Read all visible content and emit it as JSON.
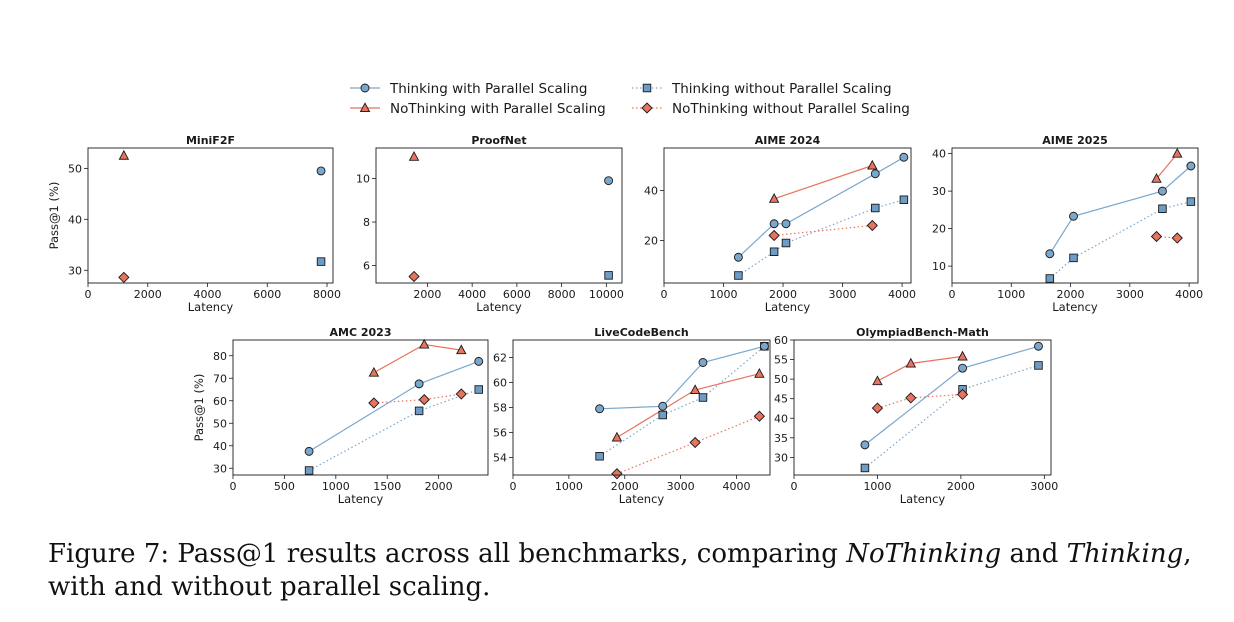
{
  "legend": {
    "entries": [
      {
        "key": "tp",
        "label": "Thinking with Parallel Scaling"
      },
      {
        "key": "tn",
        "label": "Thinking without Parallel Scaling"
      },
      {
        "key": "np",
        "label": "NoThinking with Parallel Scaling"
      },
      {
        "key": "nn",
        "label": "NoThinking without Parallel Scaling"
      }
    ]
  },
  "styles": {
    "tp": {
      "color": "#7ba7cd",
      "marker_fill": "#7ba7cd",
      "marker": "circle",
      "dash": "solid"
    },
    "tn": {
      "color": "#7ba7cd",
      "marker_fill": "#6d9cc6",
      "marker": "square",
      "dash": "dotted"
    },
    "np": {
      "color": "#e8735f",
      "marker_fill": "#e8735f",
      "marker": "triangle",
      "dash": "solid"
    },
    "nn": {
      "color": "#e8735f",
      "marker_fill": "#e8735f",
      "marker": "diamond",
      "dash": "dotted"
    }
  },
  "caption": {
    "prefix": "Figure 7: Pass@1 results across all benchmarks, comparing ",
    "em1": "NoThinking",
    "middle": " and ",
    "em2": "Thinking",
    "suffix": ", with and without parallel scaling."
  },
  "chart_data": [
    {
      "type": "line",
      "title": "MiniF2F",
      "xlabel": "Latency",
      "ylabel": "Pass@1 (%)",
      "xlim": [
        0,
        8200
      ],
      "ylim": [
        27.5,
        54
      ],
      "xticks": [
        0,
        2000,
        4000,
        6000,
        8000
      ],
      "yticks": [
        30,
        40,
        50
      ],
      "series": [
        {
          "key": "tp",
          "points": [
            [
              7800,
              49.5
            ]
          ]
        },
        {
          "key": "tn",
          "points": [
            [
              7800,
              31.7
            ]
          ]
        },
        {
          "key": "np",
          "points": [
            [
              1200,
              52.5
            ]
          ]
        },
        {
          "key": "nn",
          "points": [
            [
              1200,
              28.6
            ]
          ]
        }
      ]
    },
    {
      "type": "line",
      "title": "ProofNet",
      "xlabel": "Latency",
      "ylabel": "",
      "xlim": [
        -300,
        10700
      ],
      "ylim": [
        5.2,
        11.4
      ],
      "xticks": [
        2000,
        4000,
        6000,
        8000,
        10000
      ],
      "yticks": [
        6,
        8,
        10
      ],
      "series": [
        {
          "key": "tp",
          "points": [
            [
              10100,
              9.9
            ]
          ]
        },
        {
          "key": "tn",
          "points": [
            [
              10100,
              5.55
            ]
          ]
        },
        {
          "key": "np",
          "points": [
            [
              1400,
              11.0
            ]
          ]
        },
        {
          "key": "nn",
          "points": [
            [
              1400,
              5.5
            ]
          ]
        }
      ]
    },
    {
      "type": "line",
      "title": "AIME 2024",
      "xlabel": "Latency",
      "ylabel": "",
      "xlim": [
        0,
        4150
      ],
      "ylim": [
        3,
        57
      ],
      "xticks": [
        0,
        1000,
        2000,
        3000,
        4000
      ],
      "yticks": [
        20,
        40
      ],
      "series": [
        {
          "key": "tp",
          "points": [
            [
              1250,
              13.3
            ],
            [
              1850,
              26.7
            ],
            [
              2050,
              26.7
            ],
            [
              3550,
              46.7
            ],
            [
              4030,
              53.3
            ]
          ]
        },
        {
          "key": "tn",
          "points": [
            [
              1250,
              6.0
            ],
            [
              1850,
              15.5
            ],
            [
              2050,
              19.0
            ],
            [
              3550,
              33.0
            ],
            [
              4030,
              36.3
            ]
          ]
        },
        {
          "key": "np",
          "points": [
            [
              1850,
              36.7
            ],
            [
              3500,
              50.0
            ]
          ]
        },
        {
          "key": "nn",
          "points": [
            [
              1850,
              22.0
            ],
            [
              3500,
              26.0
            ]
          ]
        }
      ]
    },
    {
      "type": "line",
      "title": "AIME 2025",
      "xlabel": "Latency",
      "ylabel": "",
      "xlim": [
        0,
        4150
      ],
      "ylim": [
        5.5,
        41.5
      ],
      "xticks": [
        0,
        1000,
        2000,
        3000,
        4000
      ],
      "yticks": [
        10,
        20,
        30,
        40
      ],
      "series": [
        {
          "key": "tp",
          "points": [
            [
              1650,
              13.3
            ],
            [
              2050,
              23.3
            ],
            [
              3550,
              30.0
            ],
            [
              4030,
              36.7
            ]
          ]
        },
        {
          "key": "tn",
          "points": [
            [
              1650,
              6.7
            ],
            [
              2050,
              12.2
            ],
            [
              3550,
              25.3
            ],
            [
              4030,
              27.2
            ]
          ]
        },
        {
          "key": "np",
          "points": [
            [
              3450,
              33.3
            ],
            [
              3800,
              40.0
            ]
          ]
        },
        {
          "key": "nn",
          "points": [
            [
              3450,
              17.9
            ],
            [
              3800,
              17.5
            ]
          ]
        }
      ]
    },
    {
      "type": "line",
      "title": "AMC 2023",
      "xlabel": "Latency",
      "ylabel": "Pass@1 (%)",
      "xlim": [
        0,
        2480
      ],
      "ylim": [
        27,
        87
      ],
      "xticks": [
        0,
        500,
        1000,
        1500,
        2000
      ],
      "yticks": [
        30,
        40,
        50,
        60,
        70,
        80
      ],
      "series": [
        {
          "key": "tp",
          "points": [
            [
              740,
              37.5
            ],
            [
              1810,
              67.5
            ],
            [
              2390,
              77.5
            ]
          ]
        },
        {
          "key": "tn",
          "points": [
            [
              740,
              29.0
            ],
            [
              1810,
              55.5
            ],
            [
              2390,
              65.0
            ]
          ]
        },
        {
          "key": "np",
          "points": [
            [
              1370,
              72.5
            ],
            [
              1860,
              85.0
            ],
            [
              2220,
              82.5
            ]
          ]
        },
        {
          "key": "nn",
          "points": [
            [
              1370,
              59.0
            ],
            [
              1860,
              60.5
            ],
            [
              2220,
              63.0
            ]
          ]
        }
      ]
    },
    {
      "type": "line",
      "title": "LiveCodeBench",
      "xlabel": "Latency",
      "ylabel": "",
      "xlim": [
        0,
        4600
      ],
      "ylim": [
        52.6,
        63.4
      ],
      "xticks": [
        0,
        1000,
        2000,
        3000,
        4000
      ],
      "yticks": [
        54,
        56,
        58,
        60,
        62
      ],
      "series": [
        {
          "key": "tp",
          "points": [
            [
              1550,
              57.9
            ],
            [
              2680,
              58.1
            ],
            [
              3400,
              61.6
            ],
            [
              4500,
              62.9
            ]
          ]
        },
        {
          "key": "tn",
          "points": [
            [
              1550,
              54.1
            ],
            [
              2680,
              57.4
            ],
            [
              3400,
              58.8
            ],
            [
              4500,
              62.9
            ]
          ]
        },
        {
          "key": "np",
          "points": [
            [
              1860,
              55.6
            ],
            [
              3260,
              59.4
            ],
            [
              4410,
              60.7
            ]
          ]
        },
        {
          "key": "nn",
          "points": [
            [
              1860,
              52.7
            ],
            [
              3260,
              55.2
            ],
            [
              4410,
              57.3
            ]
          ]
        }
      ]
    },
    {
      "type": "line",
      "title": "OlympiadBench-Math",
      "xlabel": "Latency",
      "ylabel": "",
      "xlim": [
        0,
        3080
      ],
      "ylim": [
        25.5,
        60
      ],
      "xticks": [
        0,
        1000,
        2000,
        3000
      ],
      "yticks": [
        30,
        35,
        40,
        45,
        50,
        55,
        60
      ],
      "series": [
        {
          "key": "tp",
          "points": [
            [
              850,
              33.2
            ],
            [
              2020,
              52.8
            ],
            [
              2930,
              58.4
            ]
          ]
        },
        {
          "key": "tn",
          "points": [
            [
              850,
              27.3
            ],
            [
              2020,
              47.4
            ],
            [
              2930,
              53.5
            ]
          ]
        },
        {
          "key": "np",
          "points": [
            [
              1000,
              49.5
            ],
            [
              1400,
              54.0
            ],
            [
              2020,
              55.8
            ]
          ]
        },
        {
          "key": "nn",
          "points": [
            [
              1000,
              42.6
            ],
            [
              1400,
              45.2
            ],
            [
              2020,
              46.1
            ]
          ]
        }
      ]
    }
  ]
}
